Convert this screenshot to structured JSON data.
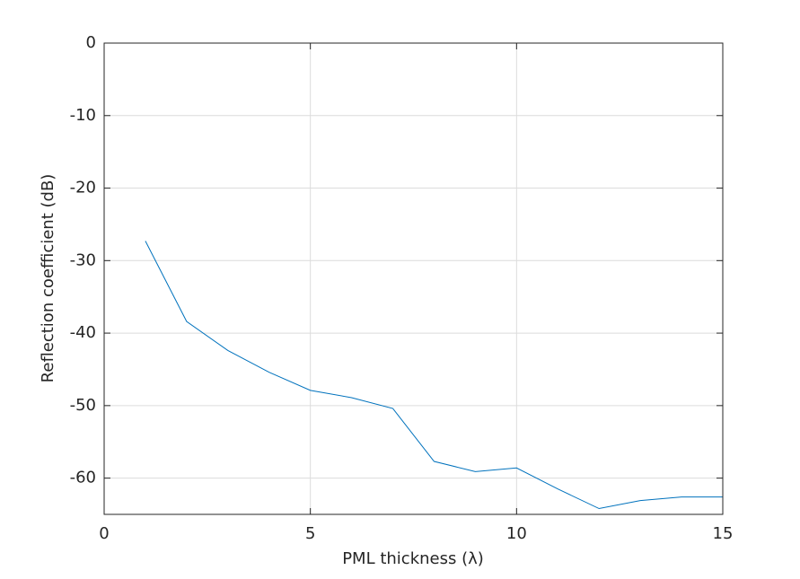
{
  "chart_data": {
    "type": "line",
    "xlabel": "PML thickness (λ)",
    "ylabel": "Reflection coefficient (dB)",
    "x": [
      1,
      2,
      3,
      4,
      5,
      6,
      7,
      8,
      9,
      10,
      11,
      12,
      13,
      14,
      15
    ],
    "series": [
      {
        "color": "#0072bd",
        "values": [
          -27.3,
          -38.4,
          -42.4,
          -45.4,
          -47.9,
          -48.9,
          -50.4,
          -57.7,
          -59.1,
          -58.6,
          -61.5,
          -64.2,
          -63.1,
          -62.6,
          -62.6
        ]
      }
    ],
    "xlim": [
      0,
      15
    ],
    "xticks": [
      0,
      5,
      10,
      15
    ],
    "ylim": [
      -65,
      0
    ],
    "yticks": [
      -60,
      -50,
      -40,
      -30,
      -20,
      -10,
      0
    ],
    "grid": true
  }
}
